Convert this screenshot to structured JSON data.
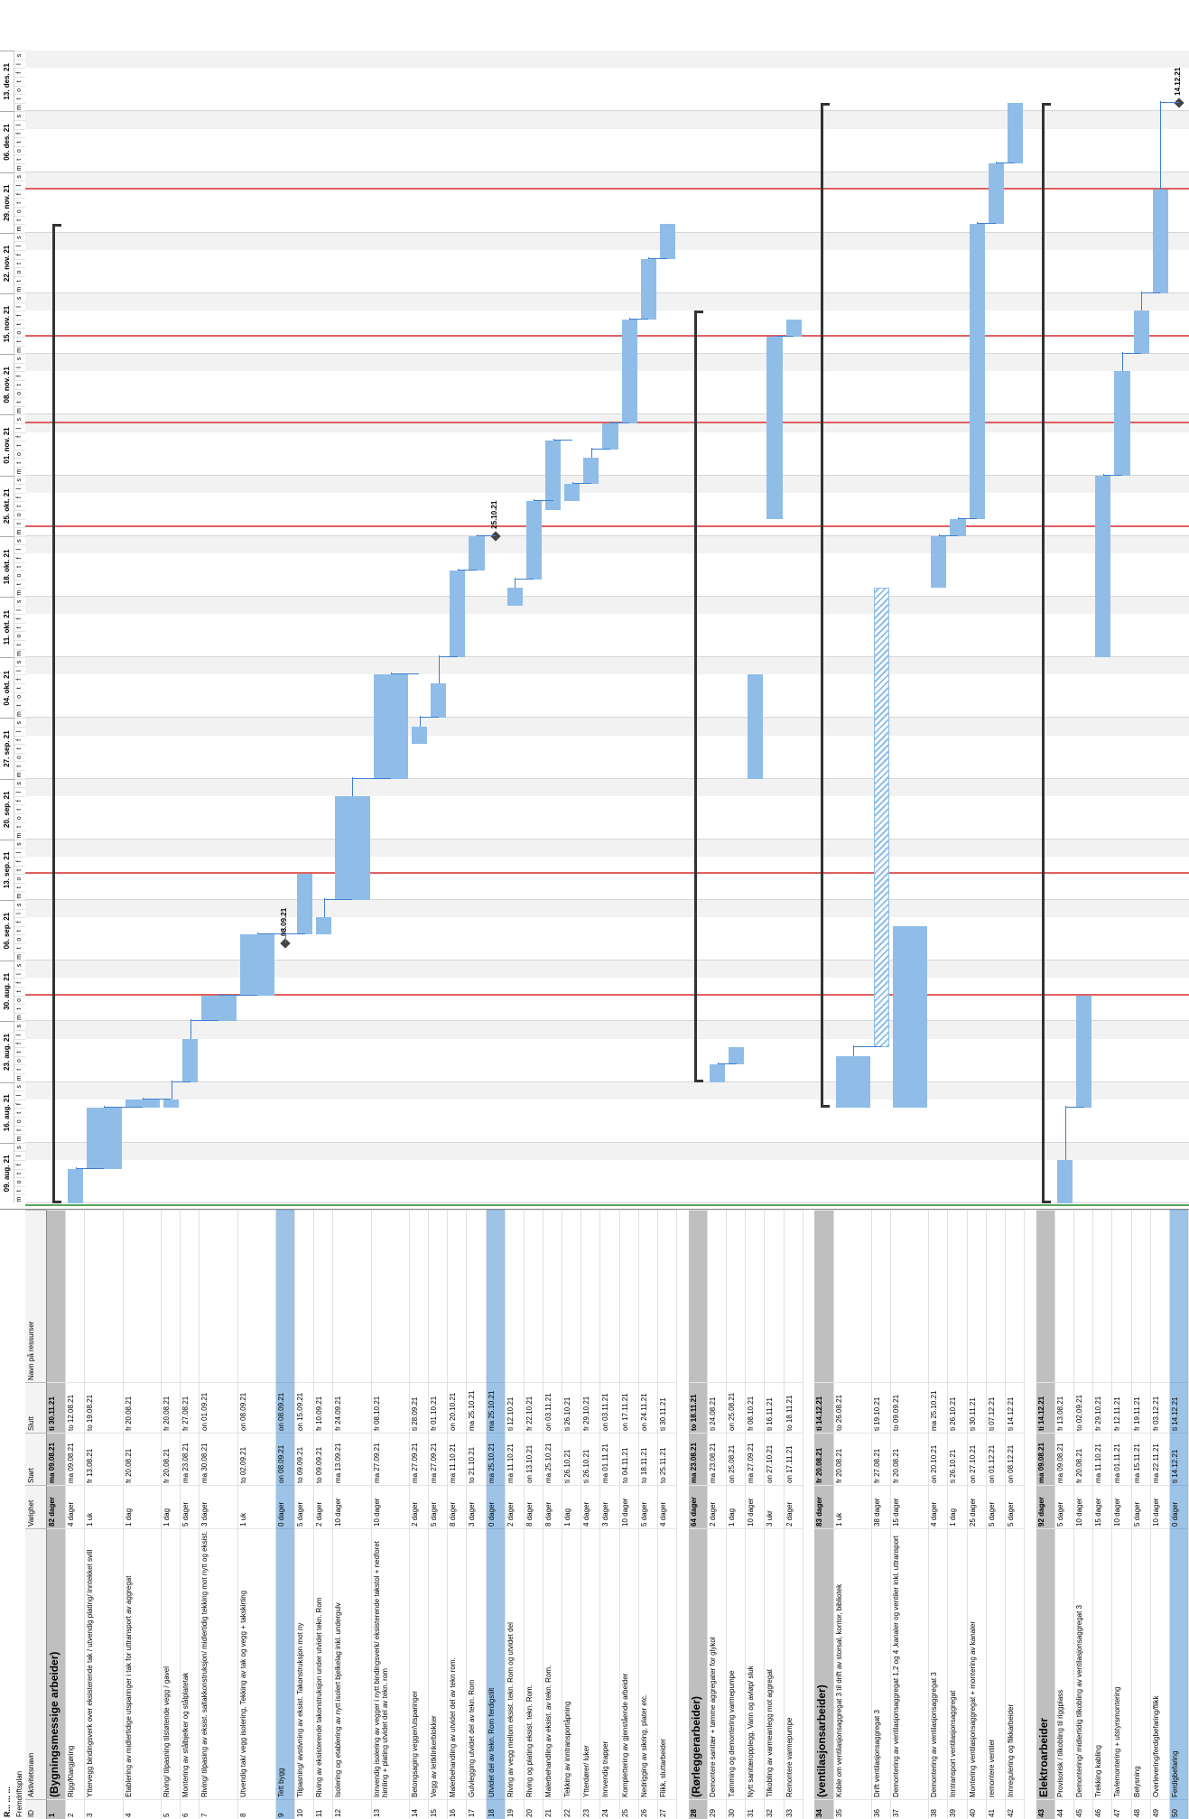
{
  "header": {
    "title": "R... ... ...",
    "subtitle": "Fremdriftsplan"
  },
  "columns": {
    "id": "ID",
    "name": "Aktivitetsnavn",
    "duration": "Varighet",
    "start": "Start",
    "finish": "Slutt",
    "resources": "Navn på ressurser"
  },
  "timeline": {
    "weeks": [
      "09. aug. 21",
      "16. aug. 21",
      "23. aug. 21",
      "30. aug. 21",
      "06. sep. 21",
      "13. sep. 21",
      "20. sep. 21",
      "27. sep. 21",
      "04. okt. 21",
      "11. okt. 21",
      "18. okt. 21",
      "25. okt. 21",
      "01. nov. 21",
      "08. nov. 21",
      "15. nov. 21",
      "22. nov. 21",
      "29. nov. 21",
      "06. des. 21",
      "13. des. 21"
    ],
    "day_letters": [
      "m",
      "t",
      "o",
      "t",
      "f",
      "l",
      "s"
    ]
  },
  "milestones": {
    "m9": "08.09.21",
    "m18": "25.10.21",
    "m50": "14.12.21"
  },
  "colors": {
    "bar": "#8fbde8",
    "summary_row": "#bfbfbf",
    "milestone_row": "#9dc3e6",
    "link": "#3f7fcf",
    "deadline": "#e06060"
  },
  "rows": [
    {
      "id": "1",
      "name": "(Bygningsmessige arbeider)",
      "duration": "82 dager",
      "start": "ma 09.08.21",
      "finish": "ti 30.11.21",
      "res": "",
      "type": "summary",
      "s": 0,
      "e": 113
    },
    {
      "id": "2",
      "name": "Rigg/Klargjøring",
      "duration": "4 dager",
      "start": "ma 09.08.21",
      "finish": "to 12.08.21",
      "res": "",
      "type": "task",
      "s": 0,
      "e": 4
    },
    {
      "id": "3",
      "name": "Yttervegg bindingsverk over eksisterende tak / utvendig plating/ inntekket svill",
      "duration": "1 uk",
      "start": "fr 13.08.21",
      "finish": "to 19.08.21",
      "res": "",
      "type": "task",
      "s": 4,
      "e": 11
    },
    {
      "id": "4",
      "name": "Etablering av midlertidige utsparinger i tak for uttransport av aggregat",
      "duration": "1 dag",
      "start": "fr 20.08.21",
      "finish": "fr 20.08.21",
      "res": "",
      "type": "task",
      "s": 11,
      "e": 12
    },
    {
      "id": "5",
      "name": "Riving/ tilpasning tilstøtende vegg / gavel",
      "duration": "1 dag",
      "start": "fr 20.08.21",
      "finish": "fr 20.08.21",
      "res": "",
      "type": "task",
      "s": 11,
      "e": 12
    },
    {
      "id": "6",
      "name": "Montering av stålbjelker og stålplatetak",
      "duration": "5 dager",
      "start": "ma 23.08.21",
      "finish": "fr 27.08.21",
      "res": "",
      "type": "task",
      "s": 14,
      "e": 19
    },
    {
      "id": "7",
      "name": "Riving/ tilpasing av eksist. saltakkonstruksjon/ midlertidig tekking mot nytt og eksist.",
      "duration": "3 dager",
      "start": "ma 30.08.21",
      "finish": "on 01.09.21",
      "res": "",
      "type": "task",
      "s": 21,
      "e": 24
    },
    {
      "id": "8",
      "name": "Utvendig tak/ vegg isolering, Tekking av tak og vegg + takskirting",
      "duration": "1 uk",
      "start": "to 02.09.21",
      "finish": "on 08.09.21",
      "res": "",
      "type": "task",
      "s": 24,
      "e": 31
    },
    {
      "id": "9",
      "name": "Tett bygg",
      "duration": "0 dager",
      "start": "on 08.09.21",
      "finish": "on 08.09.21",
      "res": "",
      "type": "milestone",
      "s": 30,
      "e": 30,
      "label_key": "m9"
    },
    {
      "id": "10",
      "name": "Tilpasning/ avstivning av eksist. Takonstruksjon mot ny",
      "duration": "5 dager",
      "start": "to 09.09.21",
      "finish": "on 15.09.21",
      "res": "",
      "type": "task",
      "s": 31,
      "e": 38
    },
    {
      "id": "11",
      "name": "Riving av eksisterende takonstruksjon under utvidet tekn. Rom",
      "duration": "2 dager",
      "start": "to 09.09.21",
      "finish": "fr 10.09.21",
      "res": "",
      "type": "task",
      "s": 31,
      "e": 33
    },
    {
      "id": "12",
      "name": "Isolering og etablering av nytt isolert bjelkelag inkl. undergulv",
      "duration": "10 dager",
      "start": "ma 13.09.21",
      "finish": "fr 24.09.21",
      "res": "",
      "type": "task",
      "s": 35,
      "e": 47
    },
    {
      "id": "13",
      "name": "Innvendig isolering av vegger i nytt bindingsverk/ eksisterende takstol + nedforet himling + plating utvidet del av tekn. rom",
      "duration": "10 dager",
      "start": "ma 27.09.21",
      "finish": "fr 08.10.21",
      "res": "",
      "type": "task",
      "s": 49,
      "e": 61
    },
    {
      "id": "14",
      "name": "Betongsaging vegger/utsparinger",
      "duration": "2 dager",
      "start": "ma 27.09.21",
      "finish": "ti 28.09.21",
      "res": "",
      "type": "task",
      "s": 53,
      "e": 55
    },
    {
      "id": "15",
      "name": "Vegg av lettklinkerblokker",
      "duration": "5 dager",
      "start": "ma 27.09.21",
      "finish": "fr 01.10.21",
      "res": "",
      "type": "task",
      "s": 56,
      "e": 60
    },
    {
      "id": "16",
      "name": "Malerbehandling av utvidet del av tekn rom.",
      "duration": "8 dager",
      "start": "ma 11.10.21",
      "finish": "on 20.10.21",
      "res": "",
      "type": "task",
      "s": 63,
      "e": 73
    },
    {
      "id": "17",
      "name": "Gulvlegging utvidet del av tekn. Rom",
      "duration": "3 dager",
      "start": "to 21.10.21",
      "finish": "ma 25.10.21",
      "res": "",
      "type": "task",
      "s": 73,
      "e": 77
    },
    {
      "id": "18",
      "name": "Utvidet del av tekn. Rom ferdigstilt",
      "duration": "0 dager",
      "start": "ma 25.10.21",
      "finish": "ma 25.10.21",
      "res": "",
      "type": "milestone",
      "s": 77,
      "e": 77,
      "label_key": "m18"
    },
    {
      "id": "19",
      "name": "Riving av vegg mellom eksist. tekn. Rom og utvidet del",
      "duration": "2 dager",
      "start": "ma 11.10.21",
      "finish": "ti 12.10.21",
      "res": "",
      "type": "task",
      "s": 69,
      "e": 71
    },
    {
      "id": "20",
      "name": "Riving og plating eksist. tekn. Rom.",
      "duration": "8 dager",
      "start": "on 13.10.21",
      "finish": "fr 22.10.21",
      "res": "",
      "type": "task",
      "s": 72,
      "e": 81
    },
    {
      "id": "21",
      "name": "Malerbehandling av eksist. av tekn. Rom.",
      "duration": "8 dager",
      "start": "ma 25.10.21",
      "finish": "on 03.11.21",
      "res": "",
      "type": "task",
      "s": 80,
      "e": 88
    },
    {
      "id": "22",
      "name": "Tekking av inntransportåpning",
      "duration": "1 dag",
      "start": "ti 26.10.21",
      "finish": "ti 26.10.21",
      "res": "",
      "type": "task",
      "s": 81,
      "e": 83
    },
    {
      "id": "23",
      "name": "Ytterdører/ luker",
      "duration": "4 dager",
      "start": "ti 26.10.21",
      "finish": "fr 29.10.21",
      "res": "",
      "type": "task",
      "s": 83,
      "e": 86
    },
    {
      "id": "24",
      "name": "Innvendig trapper",
      "duration": "3 dager",
      "start": "ma 01.11.21",
      "finish": "on 03.11.21",
      "res": "",
      "type": "task",
      "s": 87,
      "e": 90
    },
    {
      "id": "25",
      "name": "Komplettering av gjenstående arbeider",
      "duration": "10 dager",
      "start": "to 04.11.21",
      "finish": "on 17.11.21",
      "res": "",
      "type": "task",
      "s": 90,
      "e": 102
    },
    {
      "id": "26",
      "name": "Nedrigging av sikring, plater etc.",
      "duration": "5 dager",
      "start": "to 18.11.21",
      "finish": "on 24.11.21",
      "res": "",
      "type": "task",
      "s": 102,
      "e": 109
    },
    {
      "id": "27",
      "name": "Flikk, sluttarbeider",
      "duration": "4 dager",
      "start": "to 25.11.21",
      "finish": "ti 30.11.21",
      "res": "",
      "type": "task",
      "s": 109,
      "e": 113
    },
    {
      "id": "28",
      "name": "(Rørleggerarbeider)",
      "duration": "64 dager",
      "start": "ma 23.08.21",
      "finish": "to 18.11.21",
      "res": "",
      "type": "summary",
      "s": 14,
      "e": 103
    },
    {
      "id": "29",
      "name": "Demontere sanitær + tømme aggregater for glykol",
      "duration": "2 dager",
      "start": "ma 23.08.21",
      "finish": "ti 24.08.21",
      "res": "",
      "type": "task",
      "s": 14,
      "e": 16
    },
    {
      "id": "30",
      "name": "Tømming og demontering varmepumpe",
      "duration": "1 dag",
      "start": "on 25.08.21",
      "finish": "on 25.08.21",
      "res": "",
      "type": "task",
      "s": 16,
      "e": 18
    },
    {
      "id": "31",
      "name": "Nytt sanitæropplegg. Vann og avløp/ sluk",
      "duration": "10 dager",
      "start": "ma 27.09.21",
      "finish": "fr 08.10.21",
      "res": "",
      "type": "task",
      "s": 49,
      "e": 61
    },
    {
      "id": "32",
      "name": "Tilkobling av varmeanlegg mot aggregat",
      "duration": "3 ukr",
      "start": "on 27.10.21",
      "finish": "ti 16.11.21",
      "res": "",
      "type": "task",
      "s": 79,
      "e": 100
    },
    {
      "id": "33",
      "name": "Remontere varmepumpe",
      "duration": "2 dager",
      "start": "on 17.11.21",
      "finish": "to 18.11.21",
      "res": "",
      "type": "task",
      "s": 100,
      "e": 102
    },
    {
      "id": "34",
      "name": "(ventilasjonsarbeider)",
      "duration": "83 dager",
      "start": "fr 20.08.21",
      "finish": "ti 14.12.21",
      "res": "",
      "type": "summary",
      "s": 11,
      "e": 127
    },
    {
      "id": "35",
      "name": "Koble om ventilasjonsaggregat 3 til drift av storsal, kontor, bibliotek",
      "duration": "1 uk",
      "start": "fr 20.08.21",
      "finish": "to 26.08.21",
      "res": "",
      "type": "task",
      "s": 11,
      "e": 17
    },
    {
      "id": "36",
      "name": "Drift ventilasjonsaggregat 3",
      "duration": "38 dager",
      "start": "fr 27.08.21",
      "finish": "ti 19.10.21",
      "res": "",
      "type": "hatch",
      "s": 18,
      "e": 71
    },
    {
      "id": "37",
      "name": "Demontering av ventilasjonsaggregat 1,2 og 4 ,kanaler og ventiler inkl. uttransport",
      "duration": "15 dager",
      "start": "fr 20.08.21",
      "finish": "to 09.09.21",
      "res": "",
      "type": "task",
      "s": 11,
      "e": 32
    },
    {
      "id": "38",
      "name": "Demontering av ventilasjonsaggregat 3",
      "duration": "4 dager",
      "start": "on 20.10.21",
      "finish": "ma 25.10.21",
      "res": "",
      "type": "task",
      "s": 71,
      "e": 77
    },
    {
      "id": "39",
      "name": "Inntransport ventilasjonsaggregat",
      "duration": "1 dag",
      "start": "ti 26.10.21",
      "finish": "ti 26.10.21",
      "res": "",
      "type": "task",
      "s": 77,
      "e": 79
    },
    {
      "id": "40",
      "name": "Montering ventilasjonsaggregat + montering av kanaler",
      "duration": "25 dager",
      "start": "on 27.10.21",
      "finish": "ti 30.11.21",
      "res": "",
      "type": "task",
      "s": 79,
      "e": 113
    },
    {
      "id": "41",
      "name": "remontere ventiler",
      "duration": "5 dager",
      "start": "on 01.12.21",
      "finish": "ti 07.12.21",
      "res": "",
      "type": "task",
      "s": 113,
      "e": 120
    },
    {
      "id": "42",
      "name": "Innregulering og flikkarbeider",
      "duration": "5 dager",
      "start": "on 08.12.21",
      "finish": "ti 14.12.21",
      "res": "",
      "type": "task",
      "s": 120,
      "e": 127
    },
    {
      "id": "43",
      "name": "Elektroarbeider",
      "duration": "92 dager",
      "start": "ma 09.08.21",
      "finish": "ti 14.12.21",
      "res": "",
      "type": "summary",
      "s": 0,
      "e": 127
    },
    {
      "id": "44",
      "name": "Provisorisk / tilkobling til riggplass",
      "duration": "5 dager",
      "start": "ma 09.08.21",
      "finish": "fr 13.08.21",
      "res": "",
      "type": "task",
      "s": 0,
      "e": 5
    },
    {
      "id": "45",
      "name": "Demontering/ midlertidig tilkobling av ventilasjonsaggregat 3",
      "duration": "10 dager",
      "start": "fr 20.08.21",
      "finish": "to 02.09.21",
      "res": "",
      "type": "task",
      "s": 11,
      "e": 24
    },
    {
      "id": "46",
      "name": "Trekking kabling",
      "duration": "15 dager",
      "start": "ma 11.10.21",
      "finish": "fr 29.10.21",
      "res": "",
      "type": "task",
      "s": 63,
      "e": 84
    },
    {
      "id": "47",
      "name": "Tavlemontering + utstyrsmontering",
      "duration": "10 dager",
      "start": "ma 01.11.21",
      "finish": "fr 12.11.21",
      "res": "",
      "type": "task",
      "s": 84,
      "e": 96
    },
    {
      "id": "48",
      "name": "Belysning",
      "duration": "5 dager",
      "start": "ma 15.11.21",
      "finish": "fr 19.11.21",
      "res": "",
      "type": "task",
      "s": 98,
      "e": 103
    },
    {
      "id": "49",
      "name": "Overlevering/ferdigbefaring/flikk",
      "duration": "10 dager",
      "start": "ma 22.11.21",
      "finish": "fr 03.12.21",
      "res": "",
      "type": "task",
      "s": 105,
      "e": 117
    },
    {
      "id": "50",
      "name": "Ferdigbefaring",
      "duration": "0 dager",
      "start": "ti 14.12.21",
      "finish": "ti 14.12.21",
      "res": "",
      "type": "milestone",
      "s": 127,
      "e": 127,
      "label_key": "m50"
    }
  ]
}
